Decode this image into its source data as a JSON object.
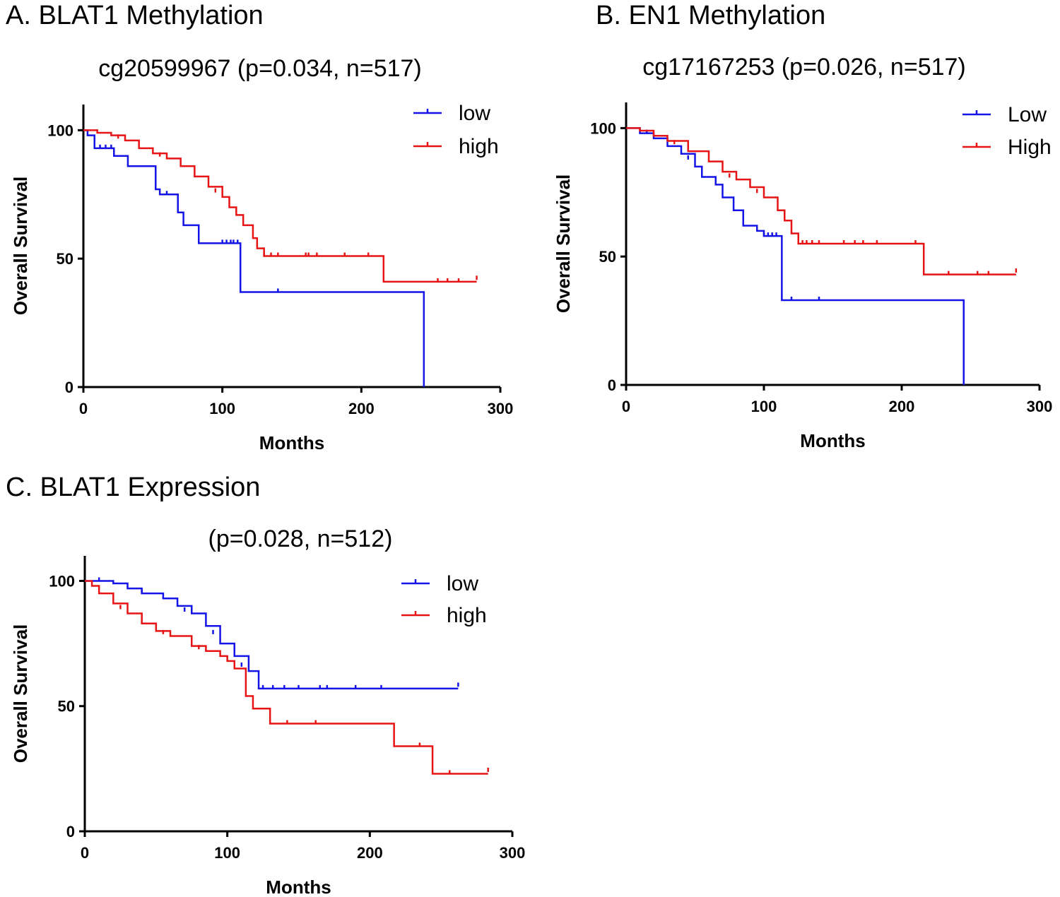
{
  "chart_data": [
    {
      "type": "line",
      "panel_label": "A. BLAT1 Methylation",
      "title": "cg20599967 (p=0.034, n=517)",
      "xlabel": "Months",
      "ylabel": "Overall Survival",
      "xlim": [
        0,
        300
      ],
      "ylim": [
        0,
        110
      ],
      "x_ticks": [
        "0",
        "100",
        "200",
        "300"
      ],
      "y_ticks": [
        "0",
        "50",
        "100"
      ],
      "x_tick_values": [
        0,
        100,
        200,
        300
      ],
      "y_tick_values": [
        0,
        50,
        100
      ],
      "legend": "top-right",
      "series": [
        {
          "name": "low",
          "color": "#1414e6",
          "steps": [
            [
              0,
              100
            ],
            [
              3,
              98
            ],
            [
              8,
              93
            ],
            [
              22,
              90
            ],
            [
              32,
              86
            ],
            [
              52,
              77
            ],
            [
              55,
              75
            ],
            [
              68,
              68
            ],
            [
              72,
              63
            ],
            [
              83,
              56
            ],
            [
              113,
              37
            ],
            [
              245,
              37
            ],
            [
              245,
              0
            ]
          ],
          "end": 245,
          "censors": [
            [
              12,
              93
            ],
            [
              16,
              93
            ],
            [
              20,
              93
            ],
            [
              60,
              75
            ],
            [
              100,
              56
            ],
            [
              103,
              56
            ],
            [
              106,
              56
            ],
            [
              108,
              56
            ],
            [
              111,
              56
            ],
            [
              140,
              37
            ]
          ]
        },
        {
          "name": "high",
          "color": "#e61414",
          "steps": [
            [
              0,
              100
            ],
            [
              10,
              99
            ],
            [
              20,
              98
            ],
            [
              30,
              96
            ],
            [
              40,
              93
            ],
            [
              50,
              91
            ],
            [
              60,
              89
            ],
            [
              70,
              86
            ],
            [
              80,
              82
            ],
            [
              90,
              78
            ],
            [
              100,
              74
            ],
            [
              105,
              70
            ],
            [
              110,
              67
            ],
            [
              115,
              63
            ],
            [
              122,
              58
            ],
            [
              125,
              54
            ],
            [
              130,
              51
            ],
            [
              216,
              51
            ],
            [
              216,
              41
            ],
            [
              290,
              41
            ]
          ],
          "end": 283,
          "censors": [
            [
              25,
              97
            ],
            [
              55,
              90
            ],
            [
              95,
              76
            ],
            [
              130,
              51
            ],
            [
              135,
              51
            ],
            [
              140,
              51
            ],
            [
              160,
              51
            ],
            [
              162,
              51
            ],
            [
              168,
              51
            ],
            [
              188,
              51
            ],
            [
              205,
              51
            ],
            [
              255,
              41
            ],
            [
              262,
              41
            ],
            [
              270,
              41
            ],
            [
              283,
              42
            ]
          ]
        }
      ]
    },
    {
      "type": "line",
      "panel_label": "B. EN1 Methylation",
      "title": "cg17167253 (p=0.026, n=517)",
      "xlabel": "Months",
      "ylabel": "Overall Survival",
      "xlim": [
        0,
        300
      ],
      "ylim": [
        0,
        110
      ],
      "x_ticks": [
        "0",
        "100",
        "200",
        "300"
      ],
      "y_ticks": [
        "0",
        "50",
        "100"
      ],
      "x_tick_values": [
        0,
        100,
        200,
        300
      ],
      "y_tick_values": [
        0,
        50,
        100
      ],
      "legend": "top-right",
      "series": [
        {
          "name": "Low",
          "color": "#1414e6",
          "steps": [
            [
              0,
              100
            ],
            [
              10,
              98
            ],
            [
              20,
              96
            ],
            [
              30,
              93
            ],
            [
              40,
              90
            ],
            [
              50,
              85
            ],
            [
              55,
              81
            ],
            [
              65,
              78
            ],
            [
              70,
              73
            ],
            [
              78,
              68
            ],
            [
              85,
              62
            ],
            [
              95,
              60
            ],
            [
              100,
              58
            ],
            [
              113,
              33
            ],
            [
              245,
              33
            ],
            [
              245,
              0
            ]
          ],
          "end": 245,
          "censors": [
            [
              15,
              98
            ],
            [
              45,
              88
            ],
            [
              100,
              58
            ],
            [
              103,
              58
            ],
            [
              106,
              58
            ],
            [
              109,
              58
            ],
            [
              120,
              33
            ],
            [
              140,
              33
            ]
          ]
        },
        {
          "name": "High",
          "color": "#e61414",
          "steps": [
            [
              0,
              100
            ],
            [
              10,
              99
            ],
            [
              20,
              97
            ],
            [
              30,
              95
            ],
            [
              45,
              91
            ],
            [
              60,
              87
            ],
            [
              70,
              83
            ],
            [
              80,
              80
            ],
            [
              90,
              77
            ],
            [
              100,
              73
            ],
            [
              110,
              68
            ],
            [
              115,
              64
            ],
            [
              120,
              59
            ],
            [
              125,
              55
            ],
            [
              140,
              55
            ],
            [
              216,
              55
            ],
            [
              216,
              43
            ],
            [
              290,
              43
            ]
          ],
          "end": 283,
          "censors": [
            [
              35,
              94
            ],
            [
              75,
              81
            ],
            [
              95,
              75
            ],
            [
              125,
              55
            ],
            [
              128,
              55
            ],
            [
              131,
              55
            ],
            [
              135,
              55
            ],
            [
              140,
              55
            ],
            [
              158,
              55
            ],
            [
              166,
              55
            ],
            [
              172,
              55
            ],
            [
              182,
              55
            ],
            [
              210,
              55
            ],
            [
              234,
              43
            ],
            [
              255,
              43
            ],
            [
              263,
              43
            ],
            [
              283,
              44
            ]
          ]
        }
      ]
    },
    {
      "type": "line",
      "panel_label": "C. BLAT1 Expression",
      "title": "(p=0.028, n=512)",
      "xlabel": "Months",
      "ylabel": "Overall Survival",
      "xlim": [
        0,
        300
      ],
      "ylim": [
        0,
        110
      ],
      "x_ticks": [
        "0",
        "100",
        "200",
        "300"
      ],
      "y_ticks": [
        "0",
        "50",
        "100"
      ],
      "x_tick_values": [
        0,
        100,
        200,
        300
      ],
      "y_tick_values": [
        0,
        50,
        100
      ],
      "legend": "top-right",
      "series": [
        {
          "name": "low",
          "color": "#1414e6",
          "steps": [
            [
              0,
              100
            ],
            [
              20,
              99
            ],
            [
              30,
              97
            ],
            [
              40,
              95
            ],
            [
              55,
              93
            ],
            [
              65,
              90
            ],
            [
              75,
              87
            ],
            [
              85,
              82
            ],
            [
              95,
              75
            ],
            [
              105,
              70
            ],
            [
              115,
              64
            ],
            [
              122,
              57
            ],
            [
              262,
              57
            ]
          ],
          "end": 262,
          "censors": [
            [
              10,
              100
            ],
            [
              40,
              95
            ],
            [
              70,
              88
            ],
            [
              90,
              79
            ],
            [
              110,
              66
            ],
            [
              125,
              57
            ],
            [
              132,
              57
            ],
            [
              140,
              57
            ],
            [
              150,
              57
            ],
            [
              165,
              57
            ],
            [
              170,
              57
            ],
            [
              190,
              57
            ],
            [
              208,
              57
            ],
            [
              262,
              58
            ]
          ]
        },
        {
          "name": "high",
          "color": "#e61414",
          "steps": [
            [
              0,
              100
            ],
            [
              5,
              98
            ],
            [
              10,
              95
            ],
            [
              20,
              91
            ],
            [
              30,
              87
            ],
            [
              40,
              83
            ],
            [
              50,
              80
            ],
            [
              60,
              78
            ],
            [
              75,
              74
            ],
            [
              85,
              72
            ],
            [
              95,
              70
            ],
            [
              100,
              68
            ],
            [
              105,
              65
            ],
            [
              113,
              63
            ],
            [
              113,
              54
            ],
            [
              118,
              49
            ],
            [
              130,
              43
            ],
            [
              217,
              43
            ],
            [
              217,
              34
            ],
            [
              244,
              34
            ],
            [
              244,
              23
            ],
            [
              283,
              23
            ]
          ],
          "end": 283,
          "censors": [
            [
              25,
              89
            ],
            [
              55,
              79
            ],
            [
              80,
              73
            ],
            [
              142,
              43
            ],
            [
              162,
              43
            ],
            [
              235,
              34
            ],
            [
              256,
              23
            ],
            [
              283,
              24
            ]
          ]
        }
      ]
    }
  ]
}
